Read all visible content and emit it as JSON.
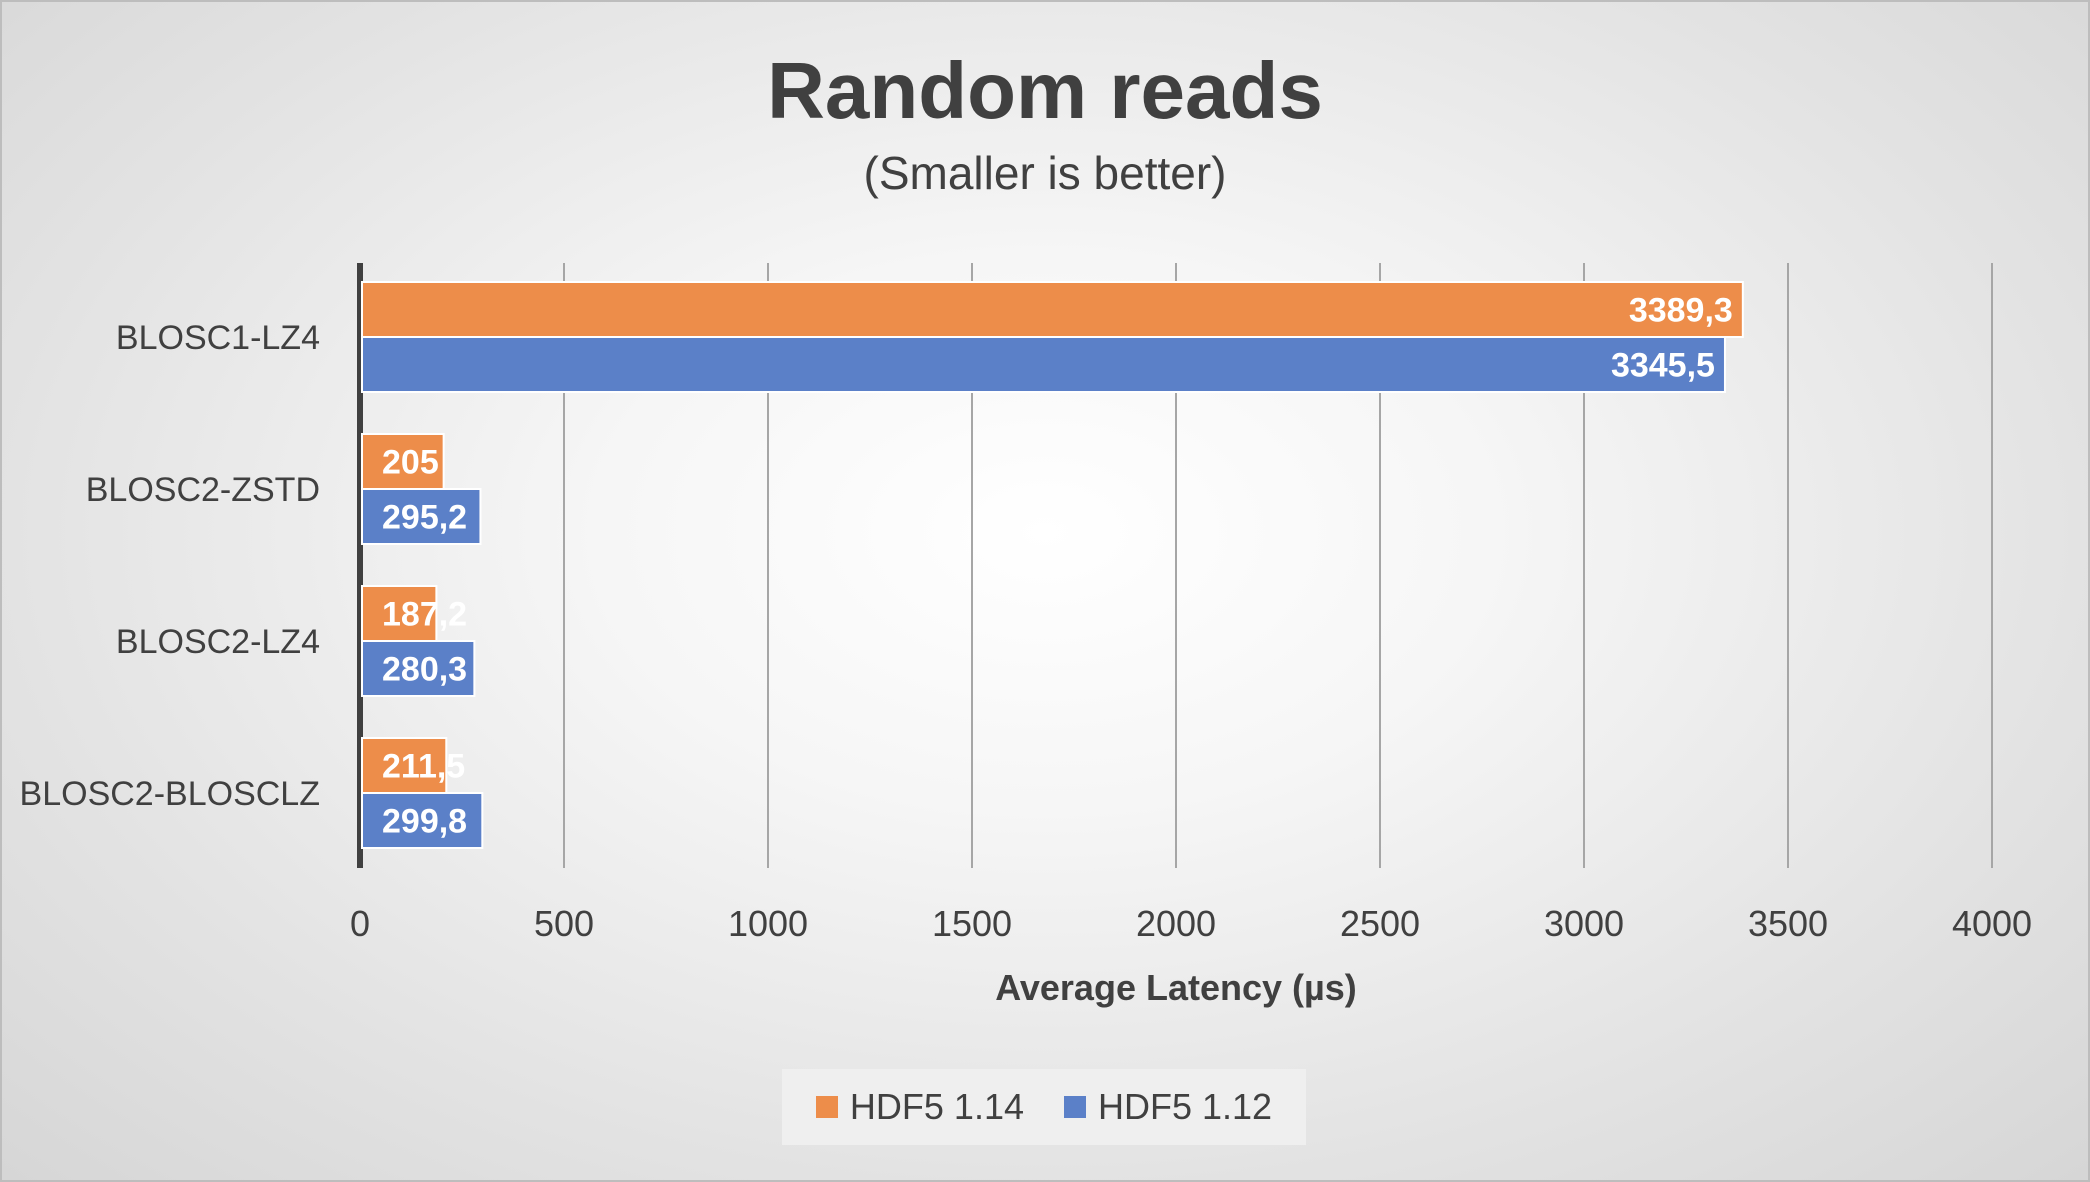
{
  "chart_data": {
    "type": "bar",
    "orientation": "horizontal",
    "title": "Random reads",
    "subtitle": "(Smaller is better)",
    "xlabel": "Average Latency (µs)",
    "ylabel": "",
    "xlim": [
      0,
      4000
    ],
    "x_ticks": [
      "0",
      "500",
      "1000",
      "1500",
      "2000",
      "2500",
      "3000",
      "3500",
      "4000"
    ],
    "tick_values": [
      0,
      500,
      1000,
      1500,
      2000,
      2500,
      3000,
      3500,
      4000
    ],
    "grid": true,
    "legend_position": "bottom",
    "categories": [
      "BLOSC1-LZ4",
      "BLOSC2-ZSTD",
      "BLOSC2-LZ4",
      "BLOSC2-BLOSCLZ"
    ],
    "series": [
      {
        "name": "HDF5 1.14",
        "color": "#ed8d4a",
        "values": [
          3389.3,
          205,
          187.2,
          211.5
        ],
        "labels": [
          "3389,3",
          "205",
          "187,2",
          "211,5"
        ]
      },
      {
        "name": "HDF5 1.12",
        "color": "#5b80c8",
        "values": [
          3345.5,
          295.2,
          280.3,
          299.8
        ],
        "labels": [
          "3345,5",
          "295,2",
          "280,3",
          "299,8"
        ]
      }
    ]
  }
}
